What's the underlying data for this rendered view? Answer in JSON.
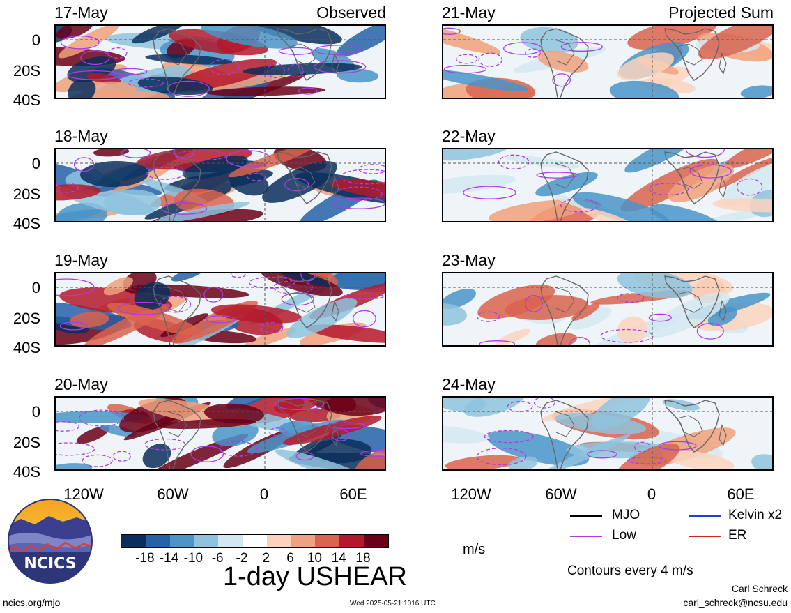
{
  "panels": [
    {
      "date": "17-May",
      "sublabel": "Observed",
      "column": "left",
      "row": 0
    },
    {
      "date": "18-May",
      "sublabel": "",
      "column": "left",
      "row": 1
    },
    {
      "date": "19-May",
      "sublabel": "",
      "column": "left",
      "row": 2
    },
    {
      "date": "20-May",
      "sublabel": "",
      "column": "left",
      "row": 3
    },
    {
      "date": "21-May",
      "sublabel": "Projected Sum",
      "column": "right",
      "row": 0
    },
    {
      "date": "22-May",
      "sublabel": "",
      "column": "right",
      "row": 1
    },
    {
      "date": "23-May",
      "sublabel": "",
      "column": "right",
      "row": 2
    },
    {
      "date": "24-May",
      "sublabel": "",
      "column": "right",
      "row": 3
    }
  ],
  "y_axis_labels": [
    "0",
    "20S",
    "40S"
  ],
  "x_axis_labels": [
    "120W",
    "60W",
    "0",
    "60E"
  ],
  "colorbar": {
    "colors": [
      "#0b2e5c",
      "#2462a8",
      "#4a94c8",
      "#8ec3de",
      "#d3e7f1",
      "#ffffff",
      "#fbd3bd",
      "#f0a17d",
      "#d9634d",
      "#b4192b",
      "#6b0019"
    ],
    "ticks": [
      "-18",
      "-14",
      "-10",
      "-6",
      "-2",
      "2",
      "6",
      "10",
      "14",
      "18"
    ],
    "units": "m/s"
  },
  "title": "1-day USHEAR",
  "legend": [
    {
      "label": "MJO",
      "color": "#000000"
    },
    {
      "label": "Kelvin x2",
      "color": "#1f3fd6"
    },
    {
      "label": "Low",
      "color": "#b03ae8"
    },
    {
      "label": "ER",
      "color": "#d42020"
    }
  ],
  "contour_note": "Contours every 4 m/s",
  "author": "Carl Schreck",
  "email": "carl_schreck@ncsu.edu",
  "site": "ncics.org/mjo",
  "timestamp": "Wed 2025-05-21 1016 UTC",
  "logo_text": "NCICS"
}
